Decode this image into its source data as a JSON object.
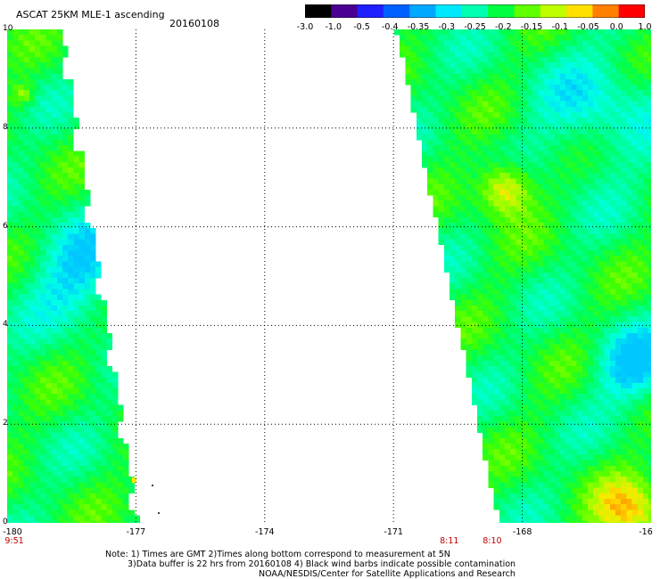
{
  "header": {
    "title": "ASCAT 25KM MLE-1 ascending",
    "date": "20160108"
  },
  "colorbar": {
    "labels": [
      "-3.0",
      "-1.0",
      "-0.5",
      "-0.4",
      "-0.35",
      "-0.3",
      "-0.25",
      "-0.2",
      "-0.15",
      "-0.1",
      "-0.05",
      "0.0",
      "1.0"
    ],
    "colors": [
      "#000000",
      "#4a0090",
      "#2020ff",
      "#0060ff",
      "#00a8ff",
      "#00e8ff",
      "#00ffb0",
      "#00ff40",
      "#60ff00",
      "#c0ff00",
      "#ffe000",
      "#ff8000",
      "#ff0000"
    ]
  },
  "map": {
    "lon_range": [
      -180,
      -165
    ],
    "lat_range": [
      0,
      10
    ],
    "lon_ticks": [
      "-180",
      "-177",
      "-174",
      "-171",
      "-168",
      "-16"
    ],
    "lat_ticks": [
      "10",
      "8",
      "6",
      "4",
      "2",
      "0"
    ],
    "time_labels": [
      {
        "text": "9:51",
        "lon": -180
      },
      {
        "text": "8:11",
        "lon": -169.7
      },
      {
        "text": "8:10",
        "lon": -168.7
      }
    ]
  },
  "notes": {
    "line1": "Note: 1) Times are GMT 2)Times along bottom correspond to measurement at 5N",
    "line2": "3)Data buffer is 22 hrs from 20160108 4) Black wind barbs indicate possible contamination",
    "line3": "NOAA/NESDIS/Center for Satellite Applications and Research"
  }
}
